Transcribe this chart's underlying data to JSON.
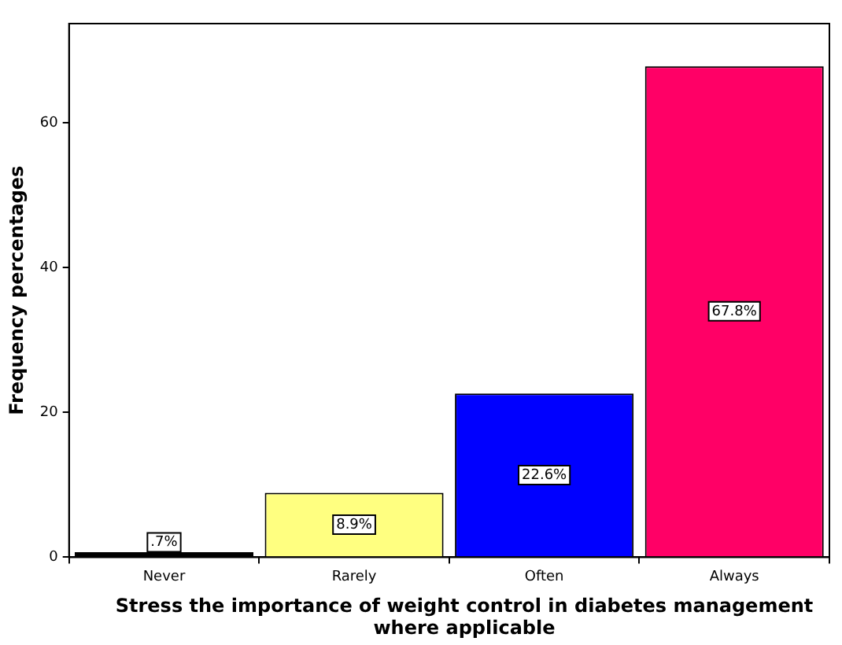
{
  "chart_data": {
    "type": "bar",
    "xlabel": "Stress the importance of weight control in diabetes management where applicable",
    "ylabel": "Frequency percentages",
    "categories": [
      "Never",
      "Rarely",
      "Often",
      "Always"
    ],
    "values": [
      0.7,
      8.9,
      22.6,
      67.8
    ],
    "colors": [
      "#000000",
      "#ffff80",
      "#0000ff",
      "#ff0066"
    ],
    "value_labels": [
      ".7%",
      "8.9%",
      "22.6%",
      "67.8%"
    ],
    "ylim": [
      0,
      73.7
    ],
    "yticks": [
      0,
      20,
      40,
      60
    ],
    "grid": false,
    "legend": false
  }
}
